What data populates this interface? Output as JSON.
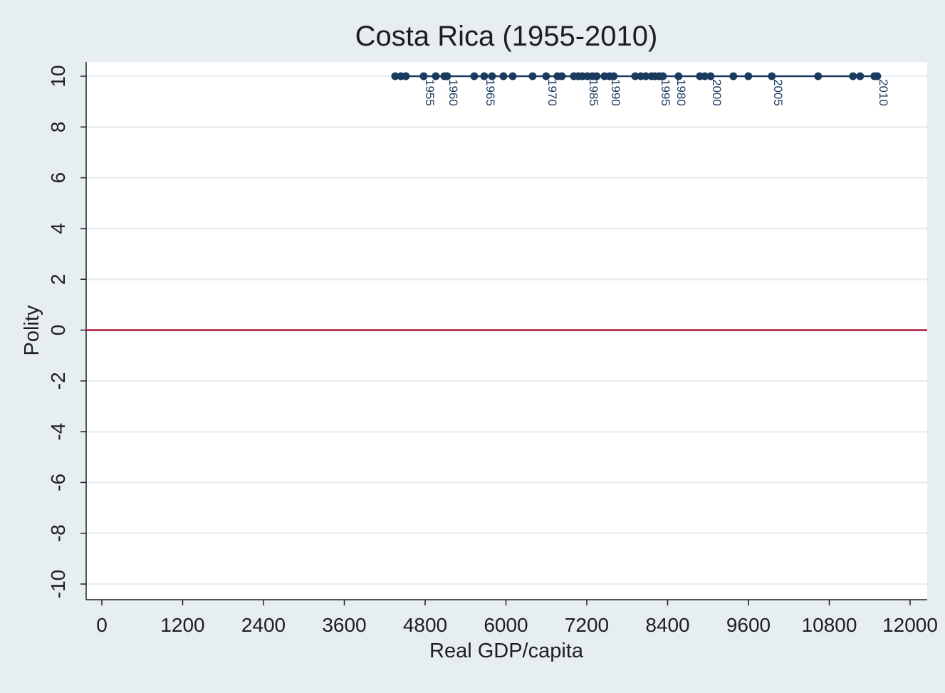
{
  "chart_data": {
    "type": "scatter",
    "title": "Costa Rica (1955-2010)",
    "xlabel": "Real GDP/capita",
    "ylabel": "Polity",
    "xlim": [
      -200,
      12200
    ],
    "ylim": [
      -10.6,
      10.6
    ],
    "xticks": [
      0,
      1200,
      2400,
      3600,
      4800,
      6000,
      7200,
      8400,
      9600,
      10800,
      12000
    ],
    "yticks": [
      -10,
      -8,
      -6,
      -4,
      -2,
      0,
      2,
      4,
      6,
      8,
      10
    ],
    "grid": true,
    "reference_line": {
      "y": 0,
      "color": "#b0173a"
    },
    "marker_color": "#1a3a5e",
    "connected": true,
    "points": [
      {
        "x": 4355,
        "y": 10,
        "label": ""
      },
      {
        "x": 4440,
        "y": 10,
        "label": ""
      },
      {
        "x": 4514,
        "y": 10,
        "label": ""
      },
      {
        "x": 4778,
        "y": 10,
        "label": "1955"
      },
      {
        "x": 4958,
        "y": 10,
        "label": ""
      },
      {
        "x": 5085,
        "y": 10,
        "label": ""
      },
      {
        "x": 5127,
        "y": 10,
        "label": "1960"
      },
      {
        "x": 5529,
        "y": 10,
        "label": ""
      },
      {
        "x": 5677,
        "y": 10,
        "label": "1965"
      },
      {
        "x": 5793,
        "y": 10,
        "label": ""
      },
      {
        "x": 5962,
        "y": 10,
        "label": ""
      },
      {
        "x": 6100,
        "y": 10,
        "label": ""
      },
      {
        "x": 6395,
        "y": 10,
        "label": ""
      },
      {
        "x": 6596,
        "y": 10,
        "label": "1970"
      },
      {
        "x": 6765,
        "y": 10,
        "label": ""
      },
      {
        "x": 6829,
        "y": 10,
        "label": ""
      },
      {
        "x": 7008,
        "y": 10,
        "label": ""
      },
      {
        "x": 7072,
        "y": 10,
        "label": ""
      },
      {
        "x": 7135,
        "y": 10,
        "label": ""
      },
      {
        "x": 7209,
        "y": 10,
        "label": "1985"
      },
      {
        "x": 7283,
        "y": 10,
        "label": ""
      },
      {
        "x": 7347,
        "y": 10,
        "label": ""
      },
      {
        "x": 7463,
        "y": 10,
        "label": ""
      },
      {
        "x": 7537,
        "y": 10,
        "label": "1990"
      },
      {
        "x": 7600,
        "y": 10,
        "label": ""
      },
      {
        "x": 7918,
        "y": 10,
        "label": ""
      },
      {
        "x": 8002,
        "y": 10,
        "label": ""
      },
      {
        "x": 8076,
        "y": 10,
        "label": ""
      },
      {
        "x": 8161,
        "y": 10,
        "label": ""
      },
      {
        "x": 8214,
        "y": 10,
        "label": ""
      },
      {
        "x": 8277,
        "y": 10,
        "label": "1995"
      },
      {
        "x": 8330,
        "y": 10,
        "label": "1980"
      },
      {
        "x": 8562,
        "y": 10,
        "label": ""
      },
      {
        "x": 8879,
        "y": 10,
        "label": ""
      },
      {
        "x": 8953,
        "y": 10,
        "label": ""
      },
      {
        "x": 9038,
        "y": 10,
        "label": "2000"
      },
      {
        "x": 9376,
        "y": 10,
        "label": ""
      },
      {
        "x": 9598,
        "y": 10,
        "label": ""
      },
      {
        "x": 9947,
        "y": 10,
        "label": "2005"
      },
      {
        "x": 10634,
        "y": 10,
        "label": ""
      },
      {
        "x": 11152,
        "y": 10,
        "label": ""
      },
      {
        "x": 11258,
        "y": 10,
        "label": ""
      },
      {
        "x": 11469,
        "y": 10,
        "label": ""
      },
      {
        "x": 11512,
        "y": 10,
        "label": "2010"
      }
    ]
  }
}
